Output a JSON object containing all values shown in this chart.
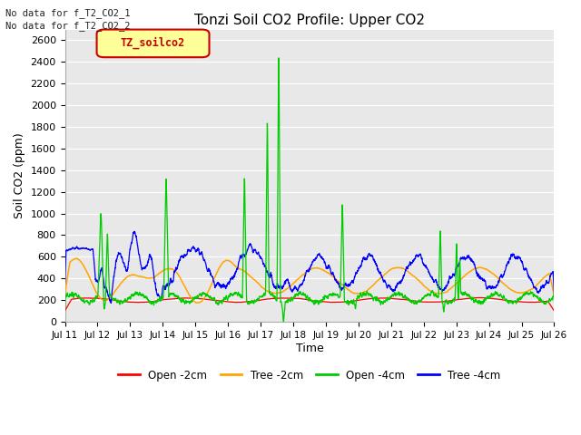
{
  "title": "Tonzi Soil CO2 Profile: Upper CO2",
  "ylabel": "Soil CO2 (ppm)",
  "xlabel": "Time",
  "ylim": [
    0,
    2700
  ],
  "yticks": [
    0,
    200,
    400,
    600,
    800,
    1000,
    1200,
    1400,
    1600,
    1800,
    2000,
    2200,
    2400,
    2600
  ],
  "legend_labels": [
    "Open -2cm",
    "Tree -2cm",
    "Open -4cm",
    "Tree -4cm"
  ],
  "legend_colors": [
    "#ff0000",
    "#ffa500",
    "#00cc00",
    "#0000ff"
  ],
  "no_data_text_1": "No data for f_T2_CO2_1",
  "no_data_text_2": "No data for f_T2_CO2_2",
  "legend_box_label": "TZ_soilco2",
  "legend_box_color": "#ffff99",
  "legend_box_border": "#cc0000",
  "plot_bg_color": "#e8e8e8",
  "n_points": 3000,
  "seed": 7
}
